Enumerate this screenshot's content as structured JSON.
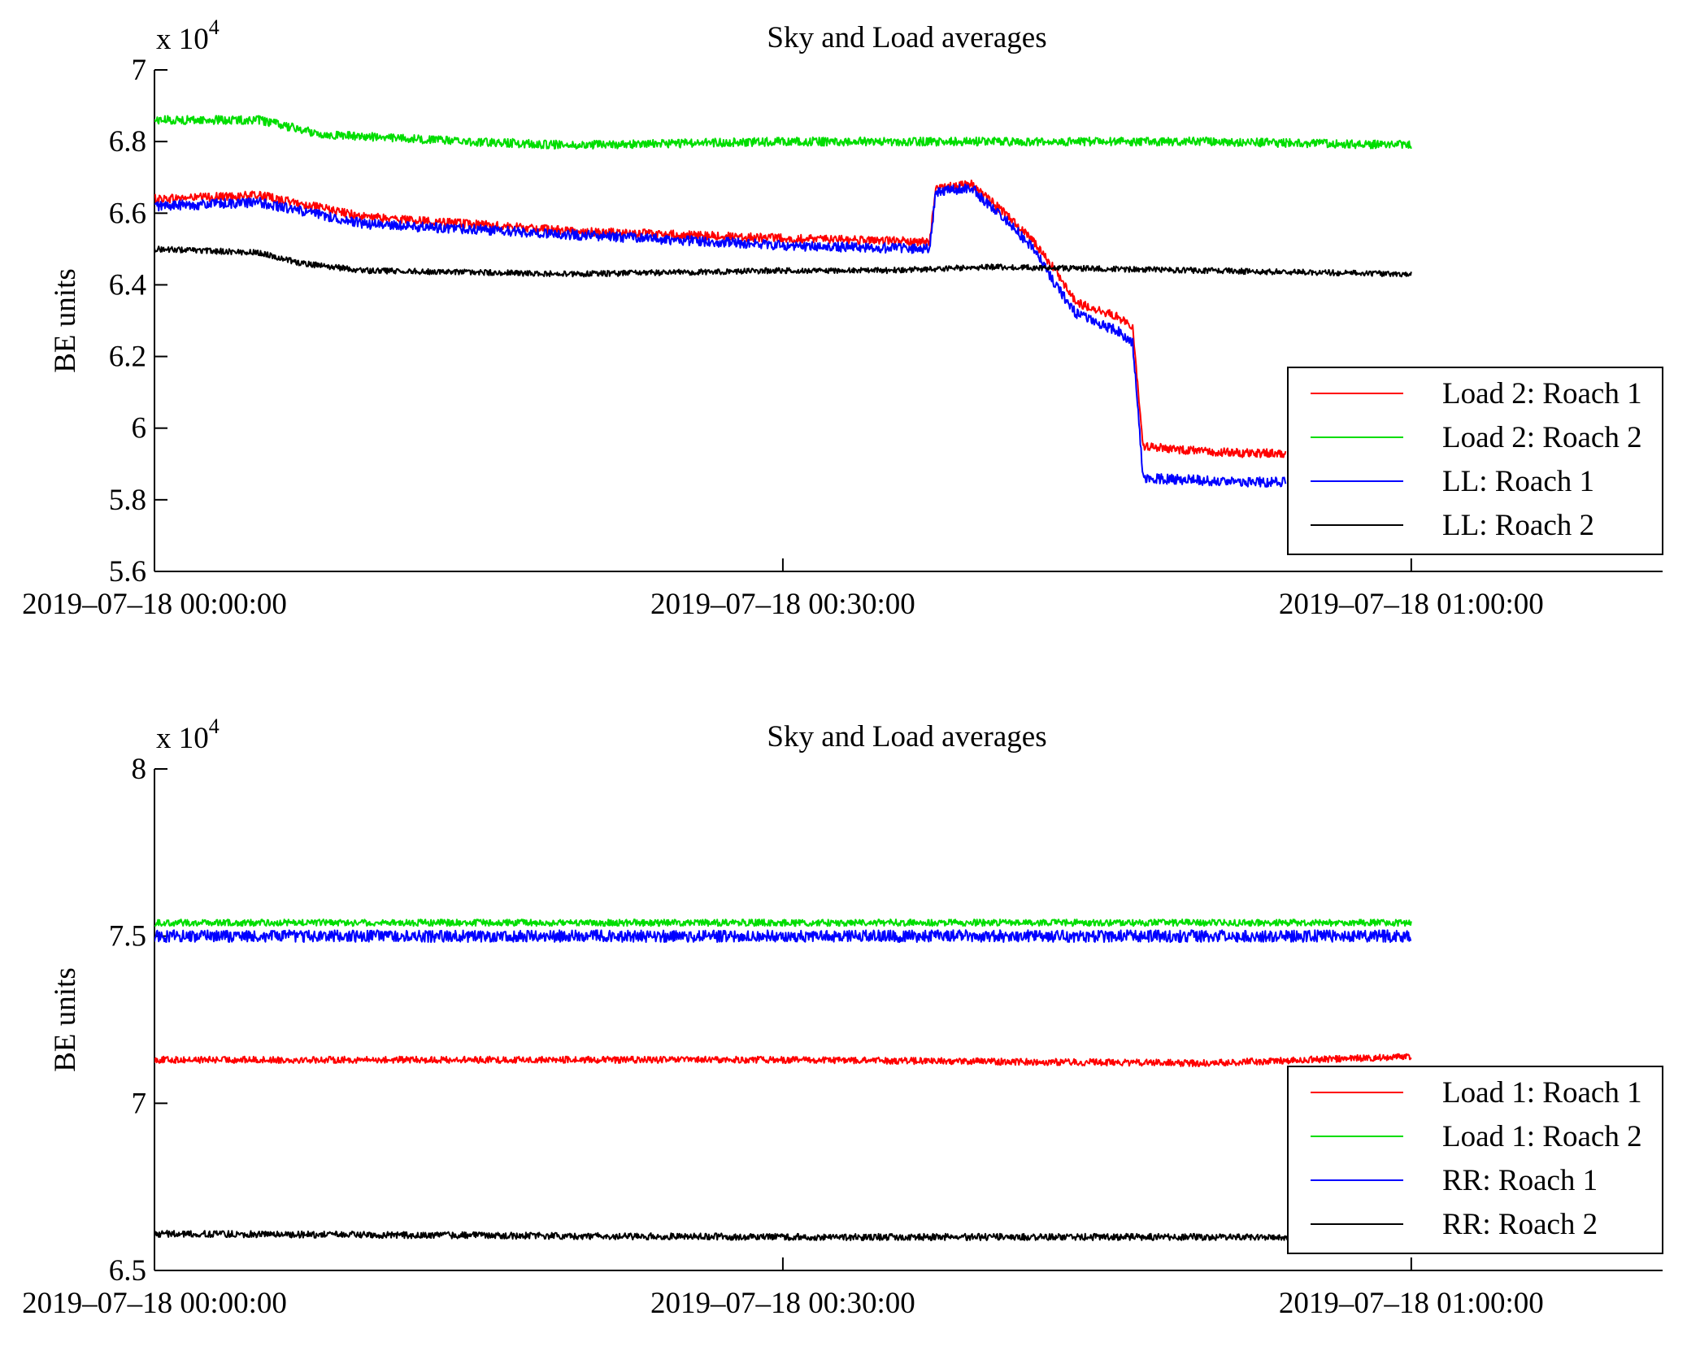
{
  "chart_data": [
    {
      "type": "line",
      "title": "Sky and Load averages",
      "ylabel": "BE units",
      "y_multiplier": {
        "base": "x 10",
        "exponent": "4"
      },
      "x_ticks": [
        "2019–07–18 00:00:00",
        "2019–07–18 00:30:00",
        "2019–07–18 01:00:00"
      ],
      "x_range_minutes": [
        0,
        72
      ],
      "y_ticks": [
        "7",
        "6.8",
        "6.6",
        "6.4",
        "6.2",
        "6",
        "5.8",
        "5.6"
      ],
      "y_tick_values": [
        7.0,
        6.8,
        6.6,
        6.4,
        6.2,
        6.0,
        5.8,
        5.6
      ],
      "ylim": [
        5.6,
        7.0
      ],
      "legend_position": "bottom-right",
      "series": [
        {
          "name": "Load 2: Roach 1",
          "color": "#ff0000",
          "noise": 0.012,
          "spikes": [],
          "points": [
            [
              0,
              6.64
            ],
            [
              5,
              6.65
            ],
            [
              10,
              6.59
            ],
            [
              20,
              6.55
            ],
            [
              30,
              6.53
            ],
            [
              37,
              6.52
            ],
            [
              37.3,
              6.67
            ],
            [
              39,
              6.68
            ],
            [
              41,
              6.58
            ],
            [
              42,
              6.52
            ],
            [
              43,
              6.44
            ],
            [
              44,
              6.35
            ],
            [
              46,
              6.31
            ],
            [
              46.7,
              6.28
            ],
            [
              47.2,
              5.95
            ],
            [
              49,
              5.94
            ],
            [
              52,
              5.93
            ],
            [
              54,
              5.93
            ]
          ]
        },
        {
          "name": "Load 2: Roach 2",
          "color": "#00dd00",
          "noise": 0.012,
          "spikes": [],
          "points": [
            [
              0,
              6.86
            ],
            [
              5,
              6.86
            ],
            [
              8,
              6.82
            ],
            [
              15,
              6.8
            ],
            [
              20,
              6.79
            ],
            [
              30,
              6.8
            ],
            [
              40,
              6.8
            ],
            [
              50,
              6.8
            ],
            [
              60,
              6.79
            ]
          ]
        },
        {
          "name": "LL: Roach 1",
          "color": "#0000ff",
          "noise": 0.014,
          "spikes": [],
          "points": [
            [
              0,
              6.62
            ],
            [
              5,
              6.63
            ],
            [
              10,
              6.57
            ],
            [
              20,
              6.54
            ],
            [
              30,
              6.51
            ],
            [
              37,
              6.5
            ],
            [
              37.3,
              6.66
            ],
            [
              39,
              6.67
            ],
            [
              41,
              6.56
            ],
            [
              42,
              6.5
            ],
            [
              43,
              6.4
            ],
            [
              44,
              6.32
            ],
            [
              46,
              6.27
            ],
            [
              46.7,
              6.24
            ],
            [
              47.2,
              5.86
            ],
            [
              52,
              5.85
            ],
            [
              54,
              5.85
            ]
          ]
        },
        {
          "name": "LL: Roach 2",
          "color": "#000000",
          "noise": 0.008,
          "spikes": [],
          "points": [
            [
              0,
              6.5
            ],
            [
              5,
              6.49
            ],
            [
              7,
              6.46
            ],
            [
              10,
              6.44
            ],
            [
              20,
              6.43
            ],
            [
              30,
              6.44
            ],
            [
              35,
              6.44
            ],
            [
              40,
              6.45
            ],
            [
              50,
              6.44
            ],
            [
              60,
              6.43
            ]
          ]
        }
      ]
    },
    {
      "type": "line",
      "title": "Sky and Load averages",
      "ylabel": "BE units",
      "y_multiplier": {
        "base": "x 10",
        "exponent": "4"
      },
      "x_ticks": [
        "2019–07–18 00:00:00",
        "2019–07–18 00:30:00",
        "2019–07–18 01:00:00"
      ],
      "x_range_minutes": [
        0,
        72
      ],
      "y_ticks": [
        "8",
        "7.5",
        "7",
        "6.5"
      ],
      "y_tick_values": [
        8.0,
        7.5,
        7.0,
        6.5
      ],
      "ylim": [
        6.5,
        8.0
      ],
      "legend_position": "bottom-right",
      "series": [
        {
          "name": "Load 1: Roach 1",
          "color": "#ff0000",
          "noise": 0.01,
          "spikes": [],
          "points": [
            [
              0,
              7.13
            ],
            [
              30,
              7.13
            ],
            [
              50,
              7.12
            ],
            [
              60,
              7.14
            ]
          ]
        },
        {
          "name": "Load 1: Roach 2",
          "color": "#00dd00",
          "noise": 0.01,
          "spikes": [],
          "points": [
            [
              0,
              7.54
            ],
            [
              30,
              7.54
            ],
            [
              60,
              7.54
            ]
          ]
        },
        {
          "name": "RR: Roach 1",
          "color": "#0000ff",
          "noise": 0.018,
          "spikes": [],
          "points": [
            [
              0,
              7.5
            ],
            [
              30,
              7.5
            ],
            [
              60,
              7.5
            ]
          ]
        },
        {
          "name": "RR: Roach 2",
          "color": "#000000",
          "noise": 0.01,
          "spikes": [],
          "points": [
            [
              0,
              6.61
            ],
            [
              30,
              6.6
            ],
            [
              60,
              6.6
            ]
          ]
        }
      ]
    }
  ]
}
